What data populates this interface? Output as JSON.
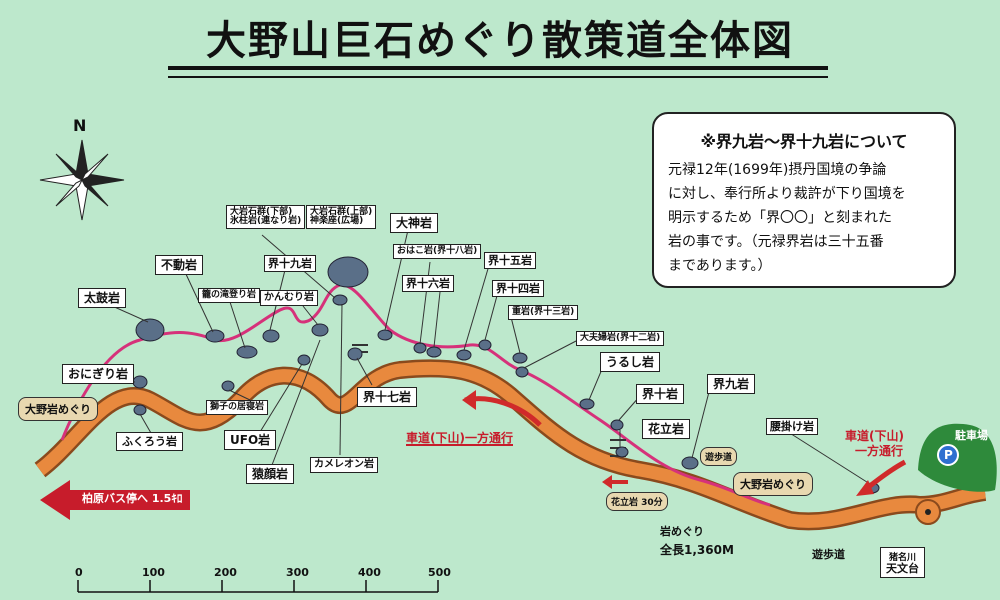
{
  "title": "大野山巨石めぐり散策道全体図",
  "compass_label": "N",
  "note": {
    "heading": "※界九岩～界十九岩について",
    "lines": [
      "元禄12年(1699年)摂丹国境の争論",
      "に対し、奉行所より裁許が下り国境を",
      "明示するため「界〇〇」と刻まれた",
      "岩の事です。（元禄界岩は三十五番",
      "まであります。）"
    ]
  },
  "rocks": {
    "taiko": "太鼓岩",
    "fudo": "不動岩",
    "onigiri": "おにぎり岩",
    "taki": "籠の滝登り岩",
    "kai19": "界十九岩",
    "kanmuri": "かんむり岩",
    "ooiwa_shita": "大岩石群(下部)",
    "hyochu": "氷柱岩(連なり岩)",
    "ooiwa_ue": "大岩石群(上部)",
    "kagura": "神楽座(広場)",
    "daijin": "大神岩",
    "ohako": "おはこ岩(界十八岩)",
    "kai16": "界十六岩",
    "kai15": "界十五岩",
    "kai14": "界十四岩",
    "kasane": "重岩(界十三岩)",
    "daifu": "大夫婦岩(界十二岩)",
    "urushi": "うるし岩",
    "kai10": "界十岩",
    "kai9": "界九岩",
    "hanatate": "花立岩",
    "koshikake": "腰掛け岩",
    "shishi": "獅子の居寝岩",
    "fukuro": "ふくろう岩",
    "ufo": "UFO岩",
    "saru": "猿顔岩",
    "chameleon": "カメレオン岩",
    "kai17": "界十七岩"
  },
  "signs": {
    "start": "大野岩めぐり",
    "end": "大野岩めぐり",
    "hanatate_sign": "花立岩 30分",
    "yuhodo_sign": "遊歩道"
  },
  "route": {
    "oneway_left": [
      "車道(下山)一方通行"
    ],
    "oneway_right": [
      "車道(下山)",
      "一方通行"
    ],
    "yuhodo": "遊歩道",
    "total_title": "岩めぐり",
    "total_len": "全長1,360M"
  },
  "bus": "柏原バス停へ 1.5ｷﾛ",
  "parking": {
    "label": "駐車場",
    "icon": "P"
  },
  "observatory": [
    "猪名川",
    "天文台"
  ],
  "scale": {
    "ticks": [
      "0",
      "100",
      "200",
      "300",
      "400",
      "500"
    ]
  },
  "colors": {
    "bg": "#bde8cc",
    "road": "#e8893e",
    "trail": "#d6317a",
    "rock": "#5a6f88",
    "arrow": "#d02a2a"
  }
}
